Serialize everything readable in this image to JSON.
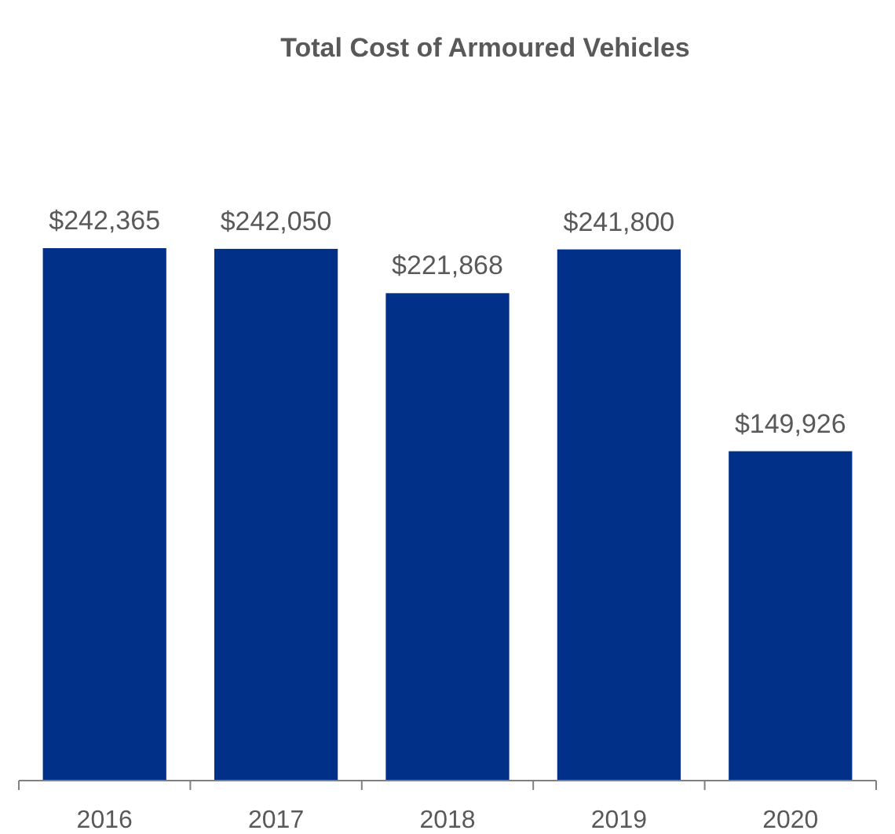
{
  "chart_data": {
    "type": "bar",
    "title": "Total Cost of Armoured Vehicles",
    "categories": [
      "2016",
      "2017",
      "2018",
      "2019",
      "2020"
    ],
    "values": [
      242365,
      242050,
      221868,
      241800,
      149926
    ],
    "value_labels": [
      "$242,365",
      "$242,050",
      "$221,868",
      "$241,800",
      "$149,926"
    ],
    "color": "#003087"
  }
}
